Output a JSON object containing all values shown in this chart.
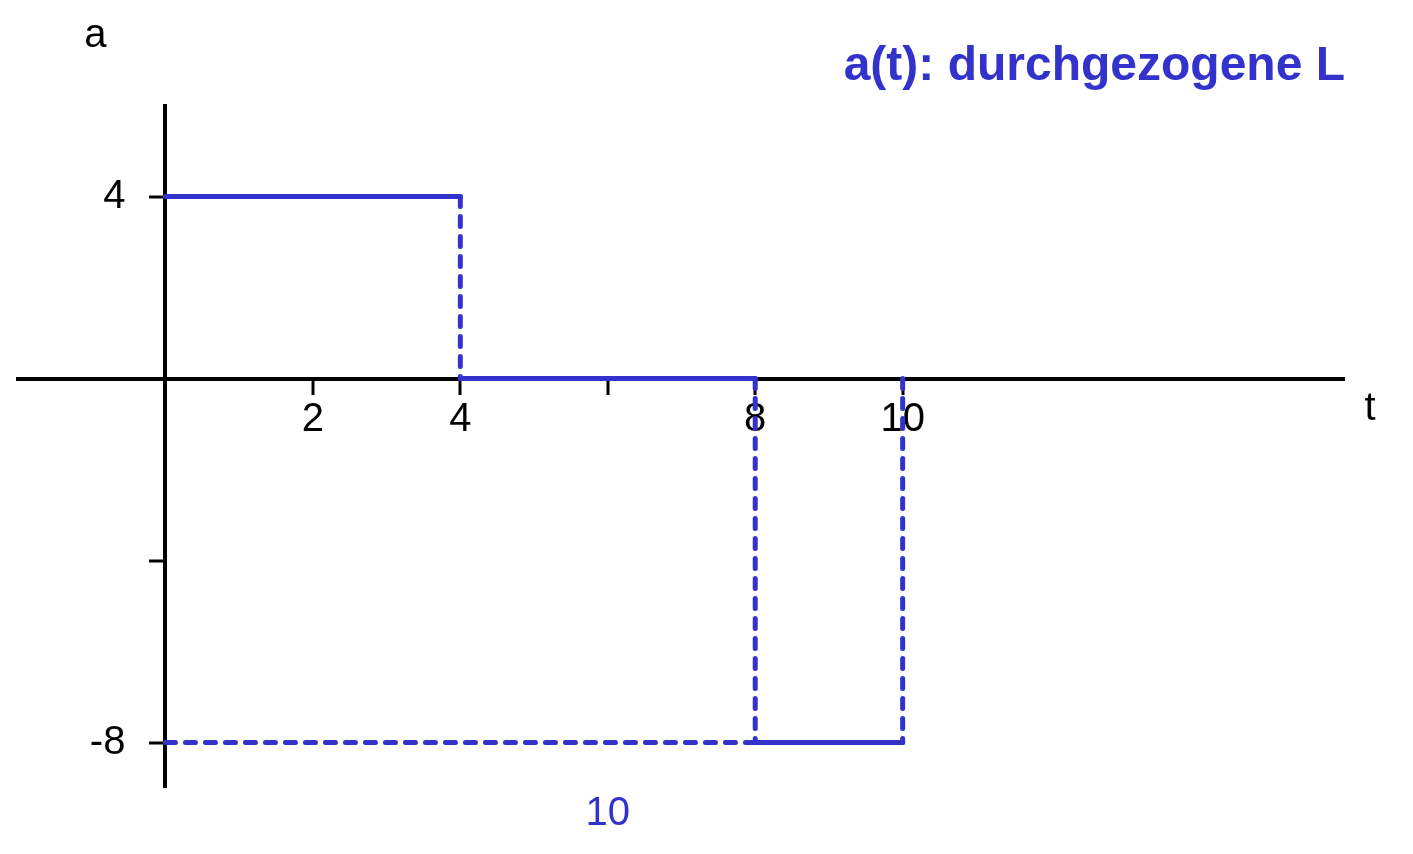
{
  "chart_data": {
    "type": "line",
    "title": "a(t): durchgezogene L",
    "xlabel": "t",
    "ylabel": "a",
    "xlim": [
      -2,
      16
    ],
    "ylim": [
      -9,
      6
    ],
    "xticks": [
      2,
      4,
      {
        "value": 6,
        "label": null
      },
      8,
      10
    ],
    "yticks": [
      4,
      {
        "value": -4,
        "label": null
      },
      -8
    ],
    "grid": false,
    "legend": false,
    "marker": "none",
    "series": [
      {
        "color": "#3333cc",
        "line_style": "solid",
        "x": [
          0,
          4
        ],
        "values": [
          4,
          4
        ]
      },
      {
        "color": "#3333cc",
        "line_style": "solid",
        "x": [
          4,
          8
        ],
        "values": [
          0,
          0
        ]
      },
      {
        "color": "#3333cc",
        "line_style": "solid",
        "x": [
          8,
          10
        ],
        "values": [
          -8,
          -8
        ]
      },
      {
        "color": "#3333cc",
        "line_style": "dashed",
        "x": [
          4,
          4
        ],
        "values": [
          4,
          0
        ]
      },
      {
        "color": "#3333cc",
        "line_style": "dashed",
        "x": [
          8,
          8
        ],
        "values": [
          0,
          -8
        ]
      },
      {
        "color": "#3333cc",
        "line_style": "dashed",
        "x": [
          10,
          10
        ],
        "values": [
          0,
          -8
        ]
      },
      {
        "color": "#3333cc",
        "line_style": "dashed",
        "x": [
          0,
          8
        ],
        "values": [
          -8,
          -8
        ]
      }
    ],
    "annotations": [
      "10"
    ]
  }
}
